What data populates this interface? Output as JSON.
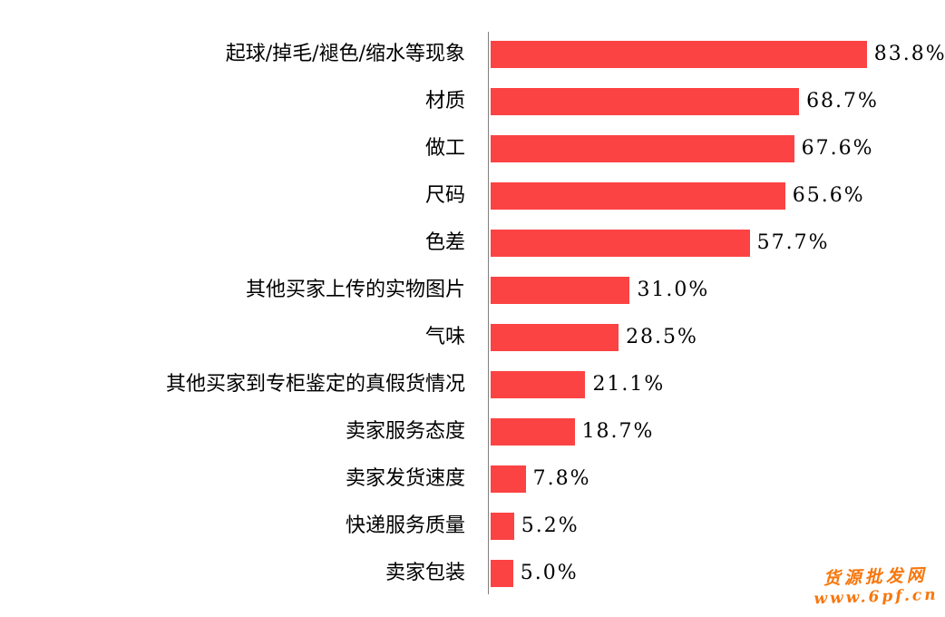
{
  "chart_data": {
    "type": "bar",
    "orientation": "horizontal",
    "title": "",
    "xlabel": "",
    "ylabel": "",
    "xlim": [
      0,
      100
    ],
    "grid": false,
    "bar_color": "#fc4343",
    "axis_color": "#808080",
    "categories": [
      "起球/掉毛/褪色/缩水等现象",
      "材质",
      "做工",
      "尺码",
      "色差",
      "其他买家上传的实物图片",
      "气味",
      "其他买家到专柜鉴定的真假货情况",
      "卖家服务态度",
      "卖家发货速度",
      "快递服务质量",
      "卖家包装"
    ],
    "values": [
      83.8,
      68.7,
      67.6,
      65.6,
      57.7,
      31.0,
      28.5,
      21.1,
      18.7,
      7.8,
      5.2,
      5.0
    ],
    "value_labels": [
      "83.8%",
      "68.7%",
      "67.6%",
      "65.6%",
      "57.7%",
      "31.0%",
      "28.5%",
      "21.1%",
      "18.7%",
      "7.8%",
      "5.2%",
      "5.0%"
    ]
  },
  "watermark": {
    "line1": "货源批发网",
    "line2": "www.6pf.cn",
    "color": "#f7770d"
  }
}
